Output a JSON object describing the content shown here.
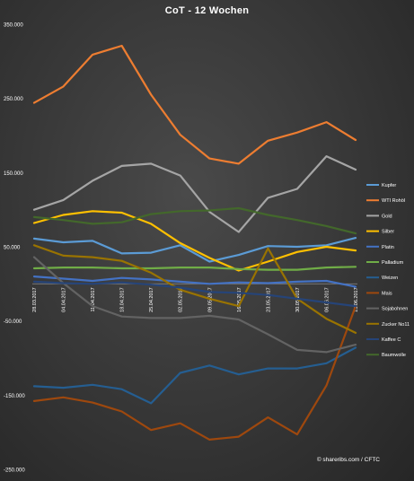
{
  "chart_data": {
    "type": "line",
    "title": "CoT - 12 Wochen",
    "credit": "© shareribs.com / CFTC",
    "xlabel": "",
    "ylabel": "",
    "ylim": [
      -250000,
      350000
    ],
    "yticks": [
      {
        "value": 350000,
        "label": "350.000"
      },
      {
        "value": 250000,
        "label": "250.000"
      },
      {
        "value": 150000,
        "label": "150.000"
      },
      {
        "value": 50000,
        "label": "50.000"
      },
      {
        "value": -50000,
        "label": "-50.000"
      },
      {
        "value": -150000,
        "label": "-150.000"
      },
      {
        "value": -250000,
        "label": "-250.000"
      }
    ],
    "grid": false,
    "legend_position": "right",
    "categories": [
      "28.03.2017",
      "04.04.2017",
      "11.04.2017",
      "18.04.2017",
      "25.04.2017",
      "02.05.2017",
      "09.05.2017",
      "16.05.2017",
      "23.05.2017",
      "30.05.2017",
      "06.06.2017",
      "13.06.2017"
    ],
    "series": [
      {
        "name": "Kupfer",
        "color": "#5b9bd5",
        "values": [
          61000,
          56000,
          58000,
          41000,
          42000,
          52000,
          30000,
          39000,
          51000,
          50000,
          52000,
          62000
        ]
      },
      {
        "name": "WTI Rohöl",
        "color": "#ed7d31",
        "values": [
          244000,
          266000,
          309000,
          321000,
          255000,
          201000,
          169000,
          162000,
          193000,
          204000,
          218000,
          194000
        ]
      },
      {
        "name": "Gold",
        "color": "#a5a5a5",
        "values": [
          100000,
          113000,
          139000,
          159000,
          162000,
          146000,
          97000,
          70000,
          116000,
          128000,
          172000,
          154000
        ]
      },
      {
        "name": "Silber",
        "color": "#ffc000",
        "values": [
          82000,
          93000,
          98000,
          96000,
          81000,
          55000,
          35000,
          18000,
          30000,
          43000,
          50000,
          45000
        ]
      },
      {
        "name": "Platin",
        "color": "#4472c4",
        "values": [
          10000,
          7000,
          4000,
          8000,
          6000,
          3000,
          0,
          2000,
          1000,
          3000,
          4000,
          -4000
        ]
      },
      {
        "name": "Palladium",
        "color": "#70ad47",
        "values": [
          21000,
          22000,
          22000,
          21000,
          21000,
          22000,
          22000,
          20000,
          19000,
          19000,
          22000,
          23000
        ]
      },
      {
        "name": "Weizen",
        "color": "#255e91",
        "values": [
          -138000,
          -140000,
          -136000,
          -142000,
          -161000,
          -120000,
          -110000,
          -122000,
          -114000,
          -114000,
          -107000,
          -86000
        ]
      },
      {
        "name": "Mais",
        "color": "#9e480e",
        "values": [
          -158000,
          -153000,
          -160000,
          -172000,
          -197000,
          -188000,
          -210000,
          -206000,
          -180000,
          -203000,
          -137000,
          -30000
        ]
      },
      {
        "name": "Sojabohnen",
        "color": "#636363",
        "values": [
          36000,
          1000,
          -30000,
          -44000,
          -46000,
          -46000,
          -43000,
          -48000,
          -68000,
          -89000,
          -92000,
          -82000
        ]
      },
      {
        "name": "Zucker No11",
        "color": "#997300",
        "values": [
          52000,
          38000,
          36000,
          31000,
          15000,
          -8000,
          -20000,
          -30000,
          48000,
          -20000,
          -47000,
          -66000
        ]
      },
      {
        "name": "Kaffee C",
        "color": "#264478",
        "values": [
          3000,
          1000,
          0,
          2000,
          -1000,
          -5000,
          -11000,
          -12000,
          -15000,
          -20000,
          -25000,
          -30000
        ]
      },
      {
        "name": "Baumwolle",
        "color": "#43682b",
        "values": [
          90000,
          86000,
          81000,
          83000,
          94000,
          98000,
          99000,
          102000,
          93000,
          86000,
          78000,
          68000
        ]
      }
    ]
  }
}
